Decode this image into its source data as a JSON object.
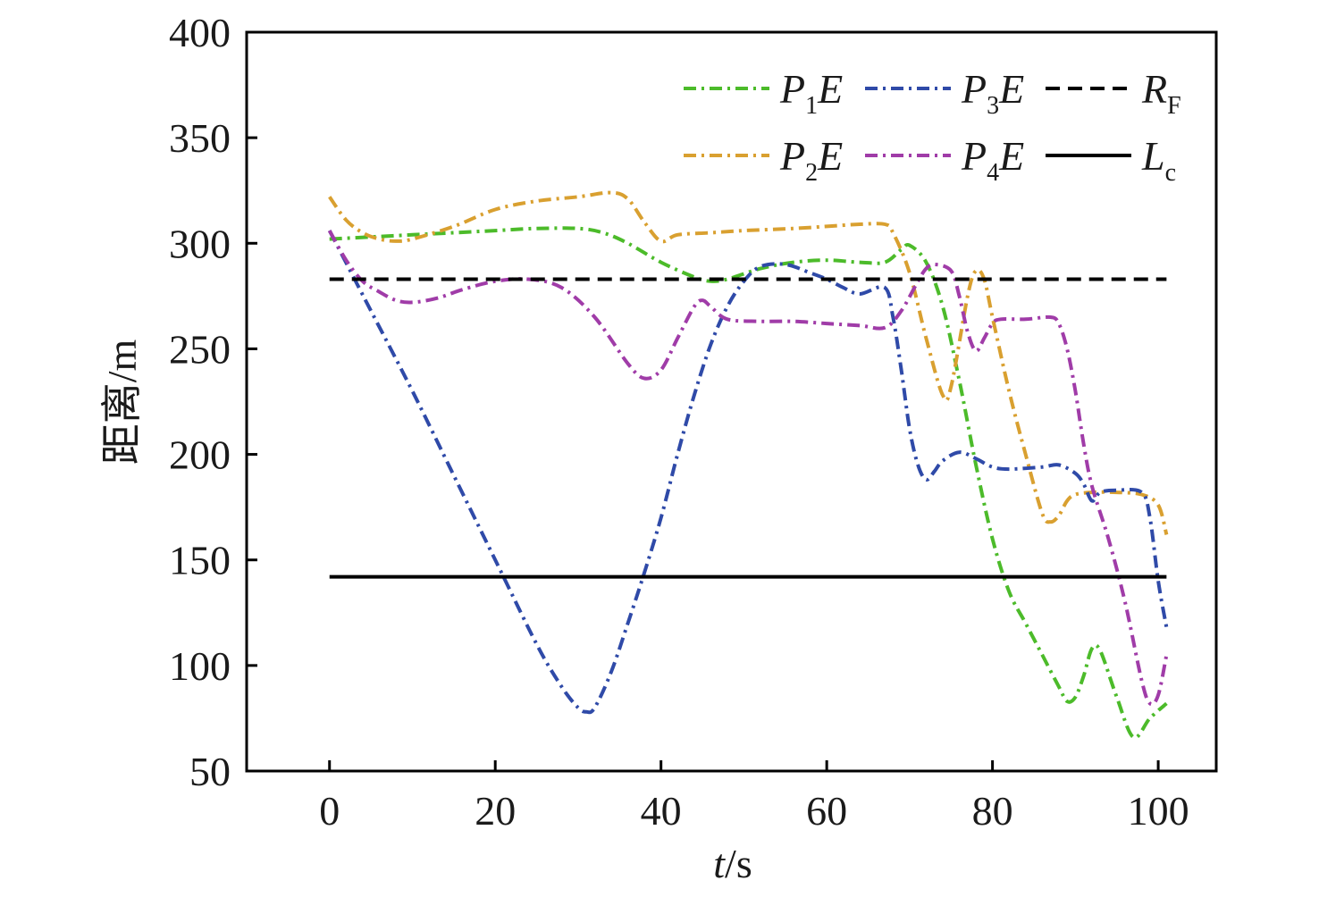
{
  "chart_data": {
    "type": "line",
    "xlabel_italic": "t",
    "xlabel_unit": "/s",
    "ylabel": "距离/m",
    "xlim": [
      -10,
      107
    ],
    "ylim": [
      50,
      400
    ],
    "xticks": [
      0,
      20,
      40,
      60,
      80,
      100
    ],
    "yticks": [
      50,
      100,
      150,
      200,
      250,
      300,
      350,
      400
    ],
    "grid": false,
    "legend_position": "top-right",
    "series": [
      {
        "name": "P1E",
        "label_main": "P",
        "label_sub": "1",
        "label_tail": "E",
        "color": "#4cbb2a",
        "style": "dashdot",
        "x": [
          0,
          5,
          10,
          15,
          20,
          25,
          30,
          33,
          36,
          40,
          44,
          46,
          48,
          52,
          56,
          60,
          64,
          67,
          69,
          70,
          72,
          74,
          76,
          78,
          80,
          82,
          84,
          86,
          88,
          89,
          90,
          91,
          92,
          93,
          95,
          97,
          99,
          101
        ],
        "y": [
          302,
          303,
          304,
          305,
          306,
          307,
          307,
          305,
          300,
          291,
          284,
          282,
          283,
          288,
          291,
          292,
          291,
          291,
          297,
          299,
          291,
          270,
          235,
          195,
          160,
          135,
          120,
          105,
          90,
          83,
          85,
          95,
          108,
          107,
          85,
          66,
          75,
          82
        ]
      },
      {
        "name": "P2E",
        "label_main": "P",
        "label_sub": "2",
        "label_tail": "E",
        "color": "#d9a030",
        "style": "dashdot",
        "x": [
          0,
          2,
          4,
          6,
          8,
          10,
          15,
          20,
          25,
          30,
          34,
          36,
          38,
          40,
          42,
          46,
          50,
          56,
          60,
          64,
          67,
          68,
          70,
          72,
          74,
          75,
          77,
          78,
          79,
          80,
          82,
          84,
          86,
          87,
          88,
          89,
          90,
          92,
          95,
          98,
          100,
          101
        ],
        "y": [
          322,
          311,
          305,
          302,
          301,
          302,
          308,
          316,
          320,
          322,
          324,
          321,
          310,
          301,
          304,
          305,
          306,
          307,
          308,
          309,
          309,
          305,
          286,
          255,
          228,
          232,
          275,
          287,
          283,
          265,
          230,
          200,
          172,
          168,
          171,
          178,
          181,
          182,
          182,
          181,
          176,
          162
        ]
      },
      {
        "name": "P3E",
        "label_main": "P",
        "label_sub": "3",
        "label_tail": "E",
        "color": "#2f4aa8",
        "style": "dashdot",
        "x": [
          0,
          5,
          10,
          15,
          20,
          25,
          28,
          30,
          31,
          32,
          34,
          36,
          38,
          40,
          42,
          44,
          46,
          48,
          50,
          52,
          55,
          58,
          60,
          62,
          64,
          67,
          68,
          69,
          70,
          71,
          72,
          73,
          74,
          76,
          78,
          80,
          82,
          86,
          88,
          90,
          91,
          92,
          93,
          95,
          98,
          99,
          100,
          101
        ],
        "y": [
          306,
          268,
          230,
          190,
          150,
          110,
          90,
          80,
          78,
          80,
          97,
          120,
          144,
          170,
          200,
          228,
          252,
          270,
          282,
          289,
          290,
          286,
          283,
          279,
          276,
          279,
          265,
          240,
          212,
          195,
          188,
          192,
          197,
          201,
          198,
          194,
          193,
          194,
          195,
          191,
          186,
          178,
          182,
          183,
          182,
          170,
          140,
          118
        ]
      },
      {
        "name": "P4E",
        "label_main": "P",
        "label_sub": "4",
        "label_tail": "E",
        "color": "#a03ca8",
        "style": "dashdot",
        "x": [
          0,
          2,
          4,
          6,
          8,
          10,
          13,
          16,
          20,
          24,
          28,
          32,
          36,
          38,
          40,
          42,
          44,
          45,
          46,
          48,
          52,
          56,
          60,
          64,
          67,
          69,
          71,
          72,
          73,
          75,
          76,
          77,
          78,
          79,
          80,
          81,
          84,
          87,
          88,
          89,
          90,
          91,
          92,
          94,
          96,
          98,
          99,
          100,
          101
        ],
        "y": [
          306,
          292,
          282,
          277,
          273,
          272,
          274,
          278,
          282,
          283,
          279,
          265,
          243,
          236,
          240,
          255,
          270,
          273,
          270,
          264,
          263,
          263,
          262,
          261,
          260,
          268,
          282,
          288,
          290,
          287,
          275,
          258,
          249,
          255,
          262,
          264,
          264,
          265,
          262,
          250,
          230,
          205,
          185,
          160,
          130,
          93,
          82,
          86,
          105
        ]
      },
      {
        "name": "RF",
        "label_main": "R",
        "label_sub": "F",
        "label_tail": "",
        "color": "#000000",
        "style": "dashed",
        "x": [
          0,
          101
        ],
        "y": [
          283,
          283
        ]
      },
      {
        "name": "Lc",
        "label_main": "L",
        "label_sub": "c",
        "label_tail": "",
        "color": "#000000",
        "style": "solid",
        "x": [
          0,
          101
        ],
        "y": [
          142,
          142
        ]
      }
    ]
  }
}
